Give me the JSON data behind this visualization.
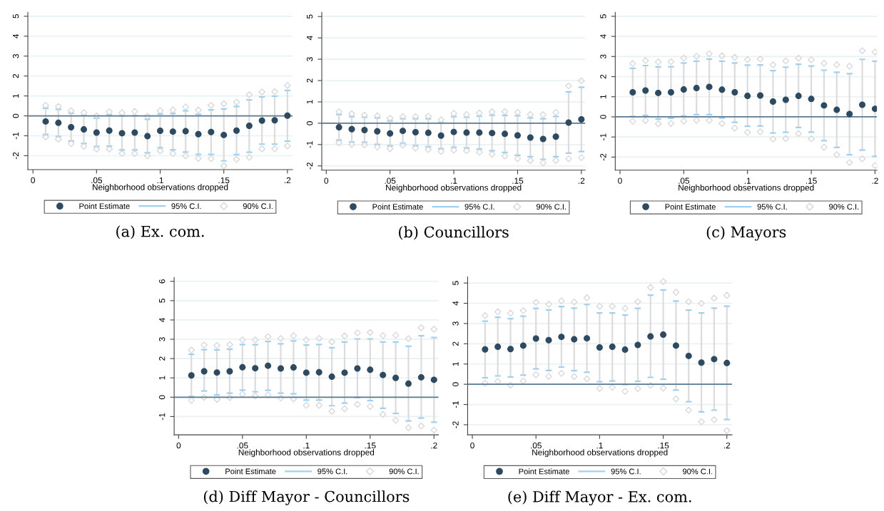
{
  "chart_data": [
    {
      "type": "scatter",
      "title": "(a) Ex. com.",
      "xlabel": "Neighborhood observations dropped",
      "annotations": [
        "95% C.I."
      ],
      "x": [
        0.01,
        0.02,
        0.03,
        0.04,
        0.05,
        0.06,
        0.07,
        0.08,
        0.09,
        0.1,
        0.11,
        0.12,
        0.13,
        0.14,
        0.15,
        0.16,
        0.17,
        0.18,
        0.19,
        0.2
      ],
      "xlim": [
        -0.004,
        0.204
      ],
      "ylim": [
        -2.7,
        5.2
      ],
      "xticks": [
        0,
        {
          "value": 0.05,
          "label": ".05"
        },
        {
          "value": 0.1,
          "label": ".1"
        },
        {
          "value": 0.15,
          "label": ".15"
        },
        {
          "value": 0.2,
          "label": ".2"
        }
      ],
      "yticks": [
        -2,
        -1,
        0,
        1,
        2,
        3,
        4,
        5
      ],
      "grid": "y",
      "legend": "bottom",
      "ref_lines": [
        {
          "axis": "y",
          "value": 0,
          "color": "#5b7a92"
        }
      ],
      "series": [
        {
          "name": "Point Estimate",
          "marker": "circle",
          "color": "#2d4a61",
          "values": [
            -0.28,
            -0.35,
            -0.57,
            -0.68,
            -0.84,
            -0.74,
            -0.87,
            -0.84,
            -1.02,
            -0.75,
            -0.79,
            -0.77,
            -0.92,
            -0.81,
            -0.96,
            -0.74,
            -0.5,
            -0.24,
            -0.22,
            0.01
          ],
          "errors": [
            [
              -0.93,
              0.38
            ],
            [
              -1.03,
              0.33
            ],
            [
              -1.26,
              0.13
            ],
            [
              -1.39,
              0.02
            ],
            [
              -1.54,
              -0.12
            ],
            [
              -1.52,
              0.05
            ],
            [
              -1.71,
              0.0
            ],
            [
              -1.71,
              0.01
            ],
            [
              -1.85,
              -0.17
            ],
            [
              -1.6,
              0.1
            ],
            [
              -1.71,
              0.12
            ],
            [
              -1.82,
              0.26
            ],
            [
              -1.93,
              0.08
            ],
            [
              -1.93,
              0.3
            ],
            [
              -2.26,
              0.35
            ],
            [
              -1.94,
              0.47
            ],
            [
              -1.83,
              0.8
            ],
            [
              -1.42,
              0.95
            ],
            [
              -1.42,
              0.99
            ],
            [
              -1.27,
              1.28
            ]
          ]
        },
        {
          "name": "90% C.I.",
          "marker": "diamond",
          "color": "#d6d6d6",
          "values": [
            0.53,
            0.47,
            0.26,
            0.16,
            0.0,
            0.2,
            0.16,
            0.22,
            -0.02,
            0.26,
            0.3,
            0.45,
            0.29,
            0.53,
            0.61,
            0.69,
            1.06,
            1.2,
            1.22,
            1.53
          ]
        },
        {
          "marker": "diamond",
          "color": "#d6d6d6",
          "values": [
            -1.06,
            -1.17,
            -1.39,
            -1.53,
            -1.67,
            -1.67,
            -1.89,
            -1.89,
            -2.01,
            -1.76,
            -1.89,
            -2.01,
            -2.13,
            -2.15,
            -2.51,
            -2.18,
            -2.08,
            -1.66,
            -1.65,
            -1.51
          ]
        }
      ]
    },
    {
      "type": "scatter",
      "title": "(b) Councillors",
      "xlabel": "Neighborhood observations dropped",
      "annotations": [
        "95% C.I."
      ],
      "x": [
        0.01,
        0.02,
        0.03,
        0.04,
        0.05,
        0.06,
        0.07,
        0.08,
        0.09,
        0.1,
        0.11,
        0.12,
        0.13,
        0.14,
        0.15,
        0.16,
        0.17,
        0.18,
        0.19,
        0.2
      ],
      "xlim": [
        -0.0035,
        0.203
      ],
      "ylim": [
        -2.2,
        5.2
      ],
      "xticks": [
        0,
        {
          "value": 0.05,
          "label": ".05"
        },
        {
          "value": 0.1,
          "label": ".1"
        },
        {
          "value": 0.15,
          "label": ".15"
        },
        {
          "value": 0.2,
          "label": ".2"
        }
      ],
      "yticks": [
        -2,
        -1,
        0,
        1,
        2,
        3,
        4,
        5
      ],
      "grid": "y",
      "legend": "bottom",
      "ref_lines": [
        {
          "axis": "y",
          "value": 0,
          "color": "#5b7a92"
        }
      ],
      "series": [
        {
          "name": "Point Estimate",
          "marker": "circle",
          "color": "#2d4a61",
          "values": [
            -0.19,
            -0.28,
            -0.32,
            -0.38,
            -0.48,
            -0.36,
            -0.42,
            -0.45,
            -0.58,
            -0.41,
            -0.44,
            -0.44,
            -0.46,
            -0.5,
            -0.57,
            -0.67,
            -0.74,
            -0.63,
            0.03,
            0.18
          ],
          "errors": [
            [
              -0.79,
              0.41
            ],
            [
              -0.88,
              0.31
            ],
            [
              -0.89,
              0.28
            ],
            [
              -0.99,
              0.25
            ],
            [
              -1.06,
              0.11
            ],
            [
              -0.93,
              0.21
            ],
            [
              -1.05,
              0.21
            ],
            [
              -1.1,
              0.21
            ],
            [
              -1.19,
              0.03
            ],
            [
              -1.13,
              0.31
            ],
            [
              -1.16,
              0.28
            ],
            [
              -1.21,
              0.33
            ],
            [
              -1.29,
              0.38
            ],
            [
              -1.37,
              0.37
            ],
            [
              -1.5,
              0.35
            ],
            [
              -1.57,
              0.25
            ],
            [
              -1.69,
              0.21
            ],
            [
              -1.57,
              0.32
            ],
            [
              -1.4,
              1.47
            ],
            [
              -1.33,
              1.69
            ]
          ]
        },
        {
          "name": "90% C.I.",
          "marker": "diamond",
          "color": "#d6d6d6",
          "values": [
            0.54,
            0.44,
            0.38,
            0.35,
            0.23,
            0.31,
            0.31,
            0.33,
            0.16,
            0.46,
            0.41,
            0.48,
            0.54,
            0.54,
            0.51,
            0.41,
            0.4,
            0.51,
            1.75,
            1.99
          ]
        },
        {
          "marker": "diamond",
          "color": "#d6d6d6",
          "values": [
            -0.92,
            -1.0,
            -1.02,
            -1.12,
            -1.19,
            -1.03,
            -1.17,
            -1.23,
            -1.32,
            -1.26,
            -1.29,
            -1.36,
            -1.46,
            -1.54,
            -1.66,
            -1.75,
            -1.86,
            -1.75,
            -1.66,
            -1.61
          ]
        }
      ]
    },
    {
      "type": "scatter",
      "title": "(c) Mayors",
      "xlabel": "Neighborhood observations dropped",
      "annotations": [
        "95% C.I."
      ],
      "x": [
        0.01,
        0.02,
        0.03,
        0.04,
        0.05,
        0.06,
        0.07,
        0.08,
        0.09,
        0.1,
        0.11,
        0.12,
        0.13,
        0.14,
        0.15,
        0.16,
        0.17,
        0.18,
        0.19,
        0.2
      ],
      "xlim": [
        -0.0037,
        0.2015
      ],
      "ylim": [
        -2.65,
        5.2
      ],
      "xticks": [
        0,
        {
          "value": 0.05,
          "label": ".05"
        },
        {
          "value": 0.1,
          "label": ".1"
        },
        {
          "value": 0.15,
          "label": ".15"
        },
        {
          "value": 0.2,
          "label": ".2"
        }
      ],
      "yticks": [
        -2,
        -1,
        0,
        1,
        2,
        3,
        4,
        5
      ],
      "grid": "y",
      "legend": "bottom",
      "ref_lines": [
        {
          "axis": "y",
          "value": 0,
          "color": "#5b7a92"
        }
      ],
      "series": [
        {
          "name": "Point Estimate",
          "marker": "circle",
          "color": "#2d4a61",
          "values": [
            1.22,
            1.31,
            1.19,
            1.22,
            1.36,
            1.43,
            1.49,
            1.35,
            1.22,
            1.04,
            1.06,
            0.76,
            0.85,
            1.04,
            0.89,
            0.57,
            0.35,
            0.14,
            0.6,
            0.4
          ],
          "errors": [
            [
              0.02,
              2.41
            ],
            [
              0.07,
              2.55
            ],
            [
              -0.11,
              2.48
            ],
            [
              -0.07,
              2.49
            ],
            [
              0.04,
              2.68
            ],
            [
              0.11,
              2.77
            ],
            [
              0.11,
              2.87
            ],
            [
              -0.06,
              2.77
            ],
            [
              -0.27,
              2.68
            ],
            [
              -0.47,
              2.57
            ],
            [
              -0.46,
              2.58
            ],
            [
              -0.8,
              2.3
            ],
            [
              -0.77,
              2.47
            ],
            [
              -0.53,
              2.62
            ],
            [
              -0.76,
              2.53
            ],
            [
              -1.18,
              2.32
            ],
            [
              -1.52,
              2.22
            ],
            [
              -1.88,
              2.15
            ],
            [
              -1.65,
              2.86
            ],
            [
              -1.96,
              2.77
            ]
          ]
        },
        {
          "name": "90% C.I.",
          "marker": "diamond",
          "color": "#d6d6d6",
          "values": [
            2.65,
            2.8,
            2.73,
            2.74,
            2.93,
            3.01,
            3.14,
            3.03,
            2.96,
            2.85,
            2.87,
            2.59,
            2.78,
            2.92,
            2.84,
            2.66,
            2.59,
            2.52,
            3.29,
            3.22
          ]
        },
        {
          "marker": "diamond",
          "color": "#d6d6d6",
          "values": [
            -0.22,
            -0.18,
            -0.34,
            -0.33,
            -0.21,
            -0.17,
            -0.17,
            -0.33,
            -0.56,
            -0.77,
            -0.74,
            -1.1,
            -1.08,
            -0.83,
            -1.09,
            -1.51,
            -1.88,
            -2.27,
            -2.08,
            -2.42
          ]
        }
      ]
    },
    {
      "type": "scatter",
      "title": "(d) Diff Mayor - Councillors",
      "xlabel": "Neighborhood observations dropped",
      "annotations": [
        "95% C.I."
      ],
      "x": [
        0.01,
        0.02,
        0.03,
        0.04,
        0.05,
        0.06,
        0.07,
        0.08,
        0.09,
        0.1,
        0.11,
        0.12,
        0.13,
        0.14,
        0.15,
        0.16,
        0.17,
        0.18,
        0.19,
        0.2
      ],
      "xlim": [
        -0.0035,
        0.2035
      ],
      "ylim": [
        -1.95,
        6.2
      ],
      "xticks": [
        0,
        {
          "value": 0.05,
          "label": ".05"
        },
        {
          "value": 0.1,
          "label": ".1"
        },
        {
          "value": 0.15,
          "label": ".15"
        },
        {
          "value": 0.2,
          "label": ".2"
        }
      ],
      "yticks": [
        -1,
        0,
        1,
        2,
        3,
        4,
        5,
        6
      ],
      "grid": "y",
      "legend": "bottom",
      "ref_lines": [
        {
          "axis": "y",
          "value": 0,
          "color": "#5b7a92"
        }
      ],
      "series": [
        {
          "name": "Point Estimate",
          "marker": "circle",
          "color": "#2d4a61",
          "values": [
            1.13,
            1.34,
            1.28,
            1.34,
            1.55,
            1.5,
            1.63,
            1.49,
            1.54,
            1.27,
            1.29,
            1.06,
            1.27,
            1.49,
            1.42,
            1.15,
            1.0,
            0.7,
            1.03,
            0.9
          ],
          "errors": [
            [
              0.04,
              2.22
            ],
            [
              0.32,
              2.46
            ],
            [
              0.12,
              2.45
            ],
            [
              0.21,
              2.49
            ],
            [
              0.37,
              2.73
            ],
            [
              0.28,
              2.72
            ],
            [
              0.36,
              2.89
            ],
            [
              0.21,
              2.77
            ],
            [
              0.17,
              2.91
            ],
            [
              -0.15,
              2.7
            ],
            [
              -0.15,
              2.73
            ],
            [
              -0.44,
              2.56
            ],
            [
              -0.31,
              2.86
            ],
            [
              -0.02,
              3.02
            ],
            [
              -0.18,
              3.02
            ],
            [
              -0.57,
              2.86
            ],
            [
              -0.84,
              2.86
            ],
            [
              -1.23,
              2.64
            ],
            [
              -1.08,
              3.18
            ],
            [
              -1.29,
              3.09
            ]
          ]
        },
        {
          "name": "90% C.I.",
          "marker": "diamond",
          "color": "#d6d6d6",
          "values": [
            2.44,
            2.7,
            2.68,
            2.72,
            2.97,
            2.97,
            3.14,
            3.04,
            3.18,
            2.97,
            3.04,
            2.87,
            3.17,
            3.33,
            3.35,
            3.19,
            3.21,
            3.03,
            3.6,
            3.52
          ]
        },
        {
          "marker": "diamond",
          "color": "#d6d6d6",
          "values": [
            -0.16,
            -0.01,
            -0.11,
            -0.02,
            0.16,
            0.06,
            0.12,
            -0.04,
            -0.09,
            -0.42,
            -0.42,
            -0.73,
            -0.6,
            -0.37,
            -0.48,
            -0.89,
            -1.19,
            -1.58,
            -1.49,
            -1.71
          ]
        }
      ]
    },
    {
      "type": "scatter",
      "title": "(e) Diff Mayor - Ex. com.",
      "xlabel": "Neighborhood observations dropped",
      "annotations": [
        "95% C.I."
      ],
      "x": [
        0.01,
        0.02,
        0.03,
        0.04,
        0.05,
        0.06,
        0.07,
        0.08,
        0.09,
        0.1,
        0.11,
        0.12,
        0.13,
        0.14,
        0.15,
        0.16,
        0.17,
        0.18,
        0.19,
        0.2
      ],
      "xlim": [
        -0.0037,
        0.204
      ],
      "ylim": [
        -2.5,
        5.3
      ],
      "xticks": [
        0,
        {
          "value": 0.05,
          "label": ".05"
        },
        {
          "value": 0.1,
          "label": ".1"
        },
        {
          "value": 0.15,
          "label": ".15"
        },
        {
          "value": 0.2,
          "label": ".2"
        }
      ],
      "yticks": [
        -2,
        -1,
        0,
        1,
        2,
        3,
        4,
        5
      ],
      "grid": "y",
      "legend": "bottom",
      "ref_lines": [
        {
          "axis": "y",
          "value": 0,
          "color": "#5b7a92"
        }
      ],
      "series": [
        {
          "name": "Point Estimate",
          "marker": "circle",
          "color": "#2d4a61",
          "values": [
            1.72,
            1.85,
            1.74,
            1.91,
            2.26,
            2.18,
            2.34,
            2.22,
            2.27,
            1.82,
            1.85,
            1.71,
            1.94,
            2.36,
            2.45,
            1.91,
            1.4,
            1.07,
            1.24,
            1.05
          ],
          "errors": [
            [
              0.32,
              3.12
            ],
            [
              0.41,
              3.31
            ],
            [
              0.36,
              3.24
            ],
            [
              0.45,
              3.36
            ],
            [
              0.76,
              3.75
            ],
            [
              0.68,
              3.67
            ],
            [
              0.85,
              3.84
            ],
            [
              0.67,
              3.76
            ],
            [
              0.59,
              3.94
            ],
            [
              0.12,
              3.52
            ],
            [
              0.16,
              3.52
            ],
            [
              -0.02,
              3.42
            ],
            [
              0.14,
              3.75
            ],
            [
              0.34,
              4.4
            ],
            [
              0.25,
              4.66
            ],
            [
              -0.29,
              4.11
            ],
            [
              -0.86,
              3.66
            ],
            [
              -1.36,
              3.52
            ],
            [
              -1.28,
              3.76
            ],
            [
              -1.74,
              3.86
            ]
          ]
        },
        {
          "name": "90% C.I.",
          "marker": "diamond",
          "color": "#d6d6d6",
          "values": [
            3.39,
            3.58,
            3.51,
            3.64,
            4.04,
            3.95,
            4.12,
            4.06,
            4.27,
            3.85,
            3.85,
            3.75,
            4.08,
            4.78,
            5.07,
            4.54,
            4.08,
            4.0,
            4.25,
            4.39
          ]
        },
        {
          "marker": "diamond",
          "color": "#d6d6d6",
          "values": [
            0.05,
            0.14,
            -0.04,
            0.16,
            0.47,
            0.39,
            0.54,
            0.38,
            0.27,
            -0.21,
            -0.15,
            -0.35,
            -0.21,
            -0.05,
            -0.19,
            -0.72,
            -1.28,
            -1.85,
            -1.75,
            -2.29
          ]
        }
      ]
    }
  ]
}
